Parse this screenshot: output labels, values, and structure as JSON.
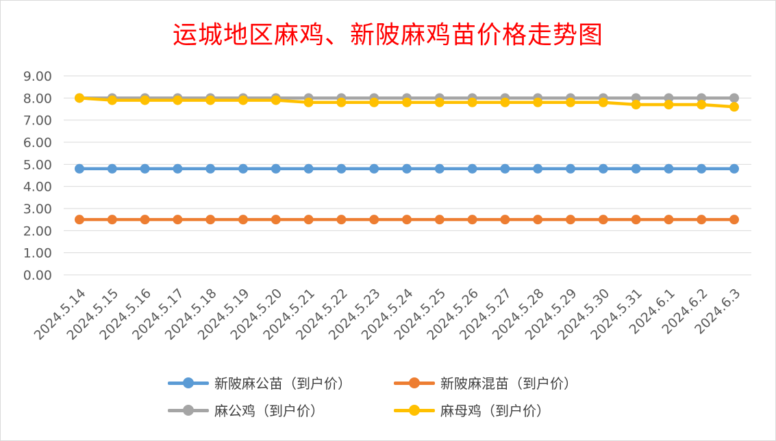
{
  "chart_data": {
    "type": "line",
    "title": "运城地区麻鸡、新陂麻鸡苗价格走势图",
    "categories": [
      "2024.5.14",
      "2024.5.15",
      "2024.5.16",
      "2024.5.17",
      "2024.5.18",
      "2024.5.19",
      "2024.5.20",
      "2024.5.21",
      "2024.5.22",
      "2024.5.23",
      "2024.5.24",
      "2024.5.25",
      "2024.5.26",
      "2024.5.27",
      "2024.5.28",
      "2024.5.29",
      "2024.5.30",
      "2024.5.31",
      "2024.6.1",
      "2024.6.2",
      "2024.6.3"
    ],
    "y_ticks": [
      "0.00",
      "1.00",
      "2.00",
      "3.00",
      "4.00",
      "5.00",
      "6.00",
      "7.00",
      "8.00",
      "9.00"
    ],
    "ylim": [
      0,
      9
    ],
    "grid": true,
    "legend_position": "bottom",
    "series": [
      {
        "name": "新陂麻公苗（到户价）",
        "color": "#5b9bd5",
        "values": [
          4.8,
          4.8,
          4.8,
          4.8,
          4.8,
          4.8,
          4.8,
          4.8,
          4.8,
          4.8,
          4.8,
          4.8,
          4.8,
          4.8,
          4.8,
          4.8,
          4.8,
          4.8,
          4.8,
          4.8,
          4.8
        ]
      },
      {
        "name": "新陂麻混苗（到户价）",
        "color": "#ed7d31",
        "values": [
          2.5,
          2.5,
          2.5,
          2.5,
          2.5,
          2.5,
          2.5,
          2.5,
          2.5,
          2.5,
          2.5,
          2.5,
          2.5,
          2.5,
          2.5,
          2.5,
          2.5,
          2.5,
          2.5,
          2.5,
          2.5
        ]
      },
      {
        "name": "麻公鸡（到户价）",
        "color": "#a5a5a5",
        "values": [
          8.0,
          8.0,
          8.0,
          8.0,
          8.0,
          8.0,
          8.0,
          8.0,
          8.0,
          8.0,
          8.0,
          8.0,
          8.0,
          8.0,
          8.0,
          8.0,
          8.0,
          8.0,
          8.0,
          8.0,
          8.0
        ]
      },
      {
        "name": "麻母鸡（到户价）",
        "color": "#ffc000",
        "values": [
          8.0,
          7.9,
          7.9,
          7.9,
          7.9,
          7.9,
          7.9,
          7.8,
          7.8,
          7.8,
          7.8,
          7.8,
          7.8,
          7.8,
          7.8,
          7.8,
          7.8,
          7.7,
          7.7,
          7.7,
          7.6
        ]
      }
    ]
  }
}
